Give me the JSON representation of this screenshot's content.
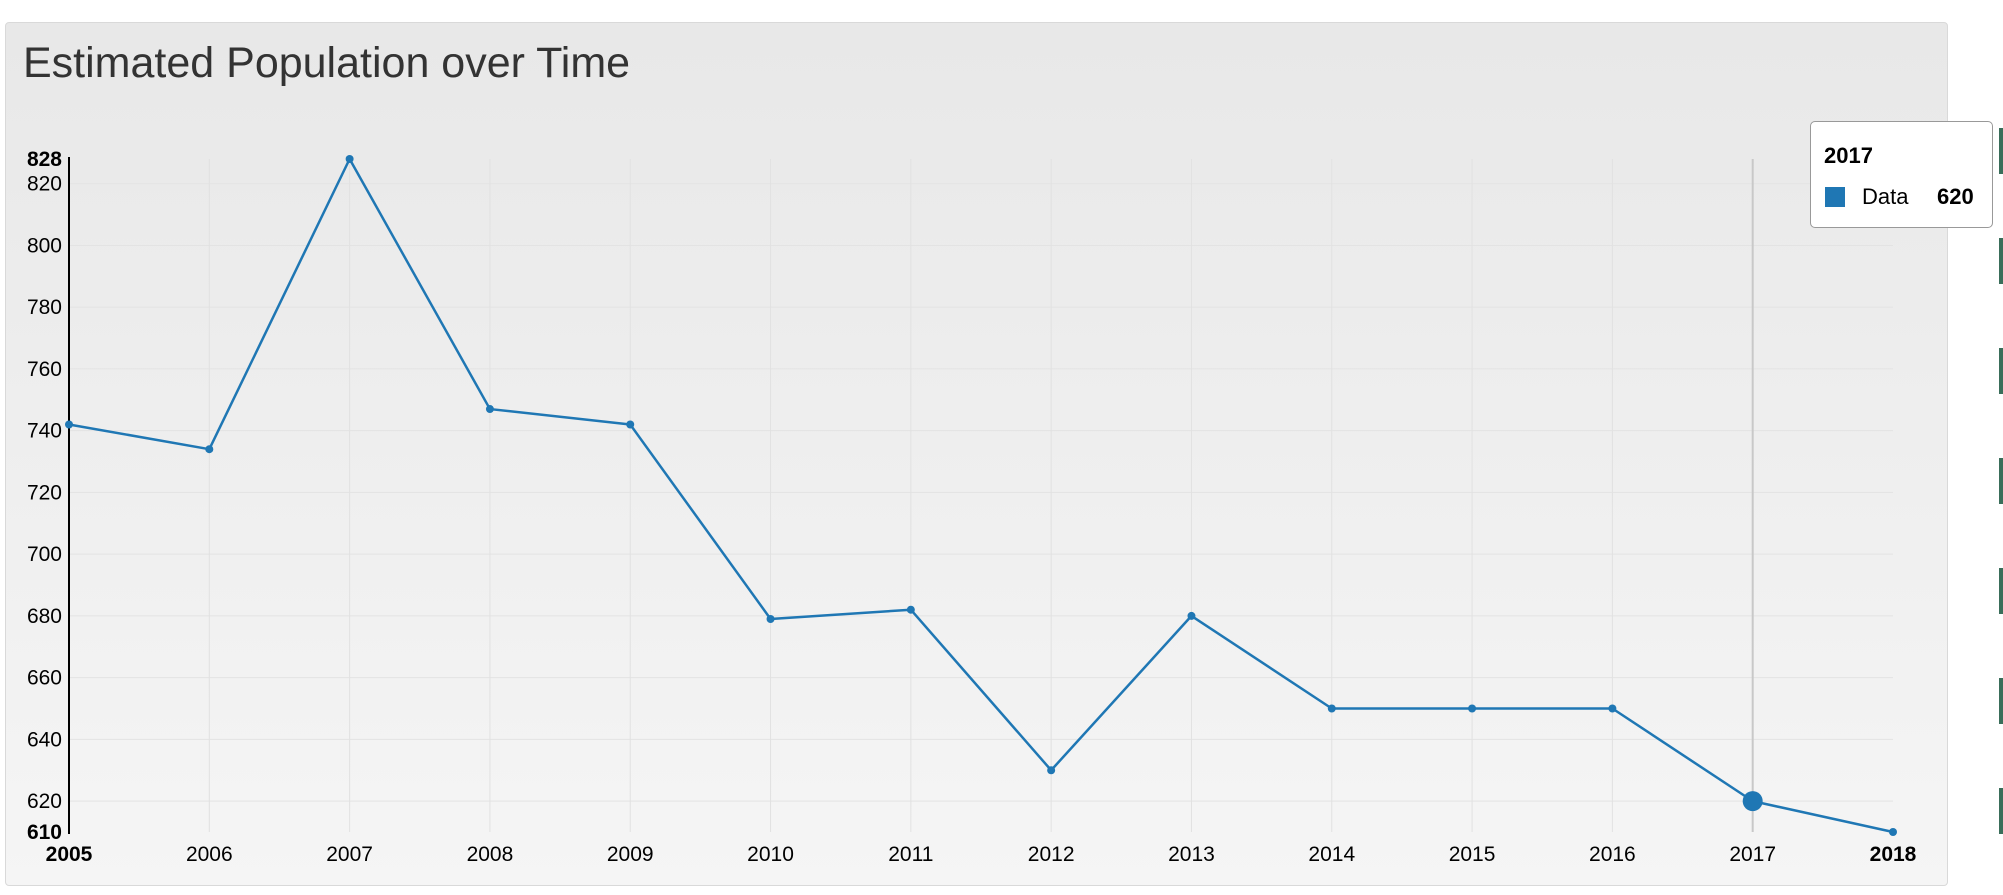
{
  "chart_data": {
    "type": "line",
    "title": "Estimated Population over Time",
    "x": [
      2005,
      2006,
      2007,
      2008,
      2009,
      2010,
      2011,
      2012,
      2013,
      2014,
      2015,
      2016,
      2017,
      2018
    ],
    "series": [
      {
        "name": "Data",
        "values": [
          742,
          734,
          828,
          747,
          742,
          679,
          682,
          630,
          680,
          650,
          650,
          650,
          620,
          610
        ]
      }
    ],
    "xlim": [
      2005,
      2018
    ],
    "ylim": [
      610,
      828
    ],
    "y_ticks": [
      820,
      800,
      780,
      760,
      740,
      720,
      700,
      680,
      660,
      640,
      620
    ],
    "y_extent_labels": [
      "828",
      "610"
    ],
    "x_ticks": [
      "2005",
      "2006",
      "2007",
      "2008",
      "2009",
      "2010",
      "2011",
      "2012",
      "2013",
      "2014",
      "2015",
      "2016",
      "2017",
      "2018"
    ],
    "xlabel": "",
    "ylabel": "",
    "grid": true,
    "line_color": "#1f77b4",
    "highlight_index": 12
  },
  "tooltip": {
    "header": "2017",
    "series_name": "Data",
    "value": "620",
    "color": "#1f77b4"
  }
}
